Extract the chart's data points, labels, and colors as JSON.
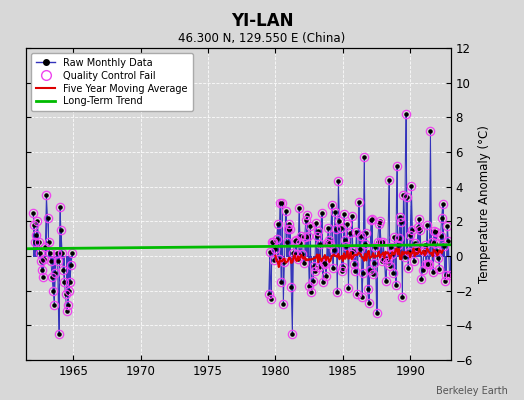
{
  "title": "YI-LAN",
  "subtitle": "46.300 N, 129.550 E (China)",
  "ylabel": "Temperature Anomaly (°C)",
  "credit": "Berkeley Earth",
  "xlim": [
    1961.5,
    1993.0
  ],
  "ylim": [
    -6,
    12
  ],
  "yticks": [
    -6,
    -4,
    -2,
    0,
    2,
    4,
    6,
    8,
    10,
    12
  ],
  "xticks": [
    1965,
    1970,
    1975,
    1980,
    1985,
    1990
  ],
  "bg_color": "#d8d8d8",
  "plot_bg": "#d8d8d8",
  "raw_line_color": "#3333bb",
  "raw_dot_color": "#000000",
  "qc_fail_color": "#ee44ee",
  "moving_avg_color": "#dd0000",
  "trend_color": "#00bb00",
  "long_trend_x": [
    1961.5,
    1993.0
  ],
  "long_trend_y": [
    0.42,
    0.65
  ],
  "seg1_years": [
    1962.0,
    1962.083,
    1962.167,
    1962.25,
    1962.333,
    1962.417,
    1962.5,
    1962.583,
    1962.667,
    1962.75,
    1962.833,
    1962.917,
    1963.0,
    1963.083,
    1963.167,
    1963.25,
    1963.333,
    1963.417,
    1963.5,
    1963.583,
    1963.667,
    1963.75,
    1963.833,
    1963.917,
    1964.0,
    1964.083,
    1964.167,
    1964.25,
    1964.333,
    1964.417,
    1964.5,
    1964.583,
    1964.667,
    1964.75,
    1964.833,
    1964.917
  ],
  "seg1_vals": [
    2.5,
    1.8,
    0.8,
    1.2,
    2.0,
    0.8,
    0.2,
    -0.3,
    -0.8,
    -1.2,
    -0.2,
    0.5,
    3.5,
    2.2,
    0.8,
    0.2,
    -0.3,
    -1.2,
    -2.0,
    -2.8,
    -1.0,
    0.2,
    -0.3,
    -4.5,
    2.8,
    1.5,
    0.2,
    -0.8,
    -1.5,
    -2.2,
    -3.2,
    -2.8,
    -2.0,
    -1.5,
    -0.5,
    0.2
  ],
  "seg1_qc": [
    true,
    true,
    true,
    true,
    true,
    true,
    true,
    true,
    true,
    true,
    true,
    true,
    true,
    true,
    true,
    true,
    true,
    true,
    true,
    true,
    true,
    true,
    true,
    true,
    true,
    true,
    true,
    true,
    true,
    true,
    true,
    true,
    true,
    true,
    true,
    true
  ]
}
